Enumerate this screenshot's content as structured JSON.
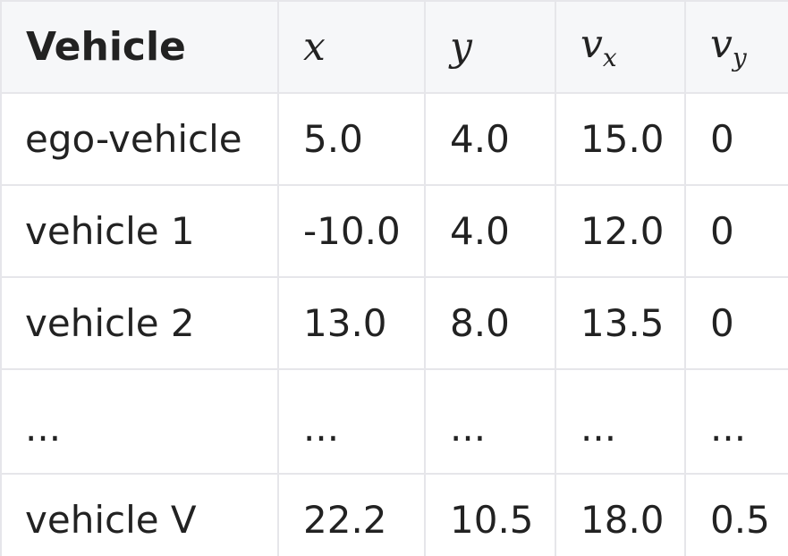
{
  "table": {
    "headers": {
      "vehicle": "Vehicle",
      "x": "x",
      "y": "y",
      "vx_base": "v",
      "vx_sub": "x",
      "vy_base": "v",
      "vy_sub": "y"
    },
    "rows": [
      [
        "ego-vehicle",
        "5.0",
        "4.0",
        "15.0",
        "0"
      ],
      [
        "vehicle 1",
        "-10.0",
        "4.0",
        "12.0",
        "0"
      ],
      [
        "vehicle 2",
        "13.0",
        "8.0",
        "13.5",
        "0"
      ],
      [
        "...",
        "...",
        "...",
        "...",
        "..."
      ],
      [
        "vehicle V",
        "22.2",
        "10.5",
        "18.0",
        "0.5"
      ]
    ]
  }
}
